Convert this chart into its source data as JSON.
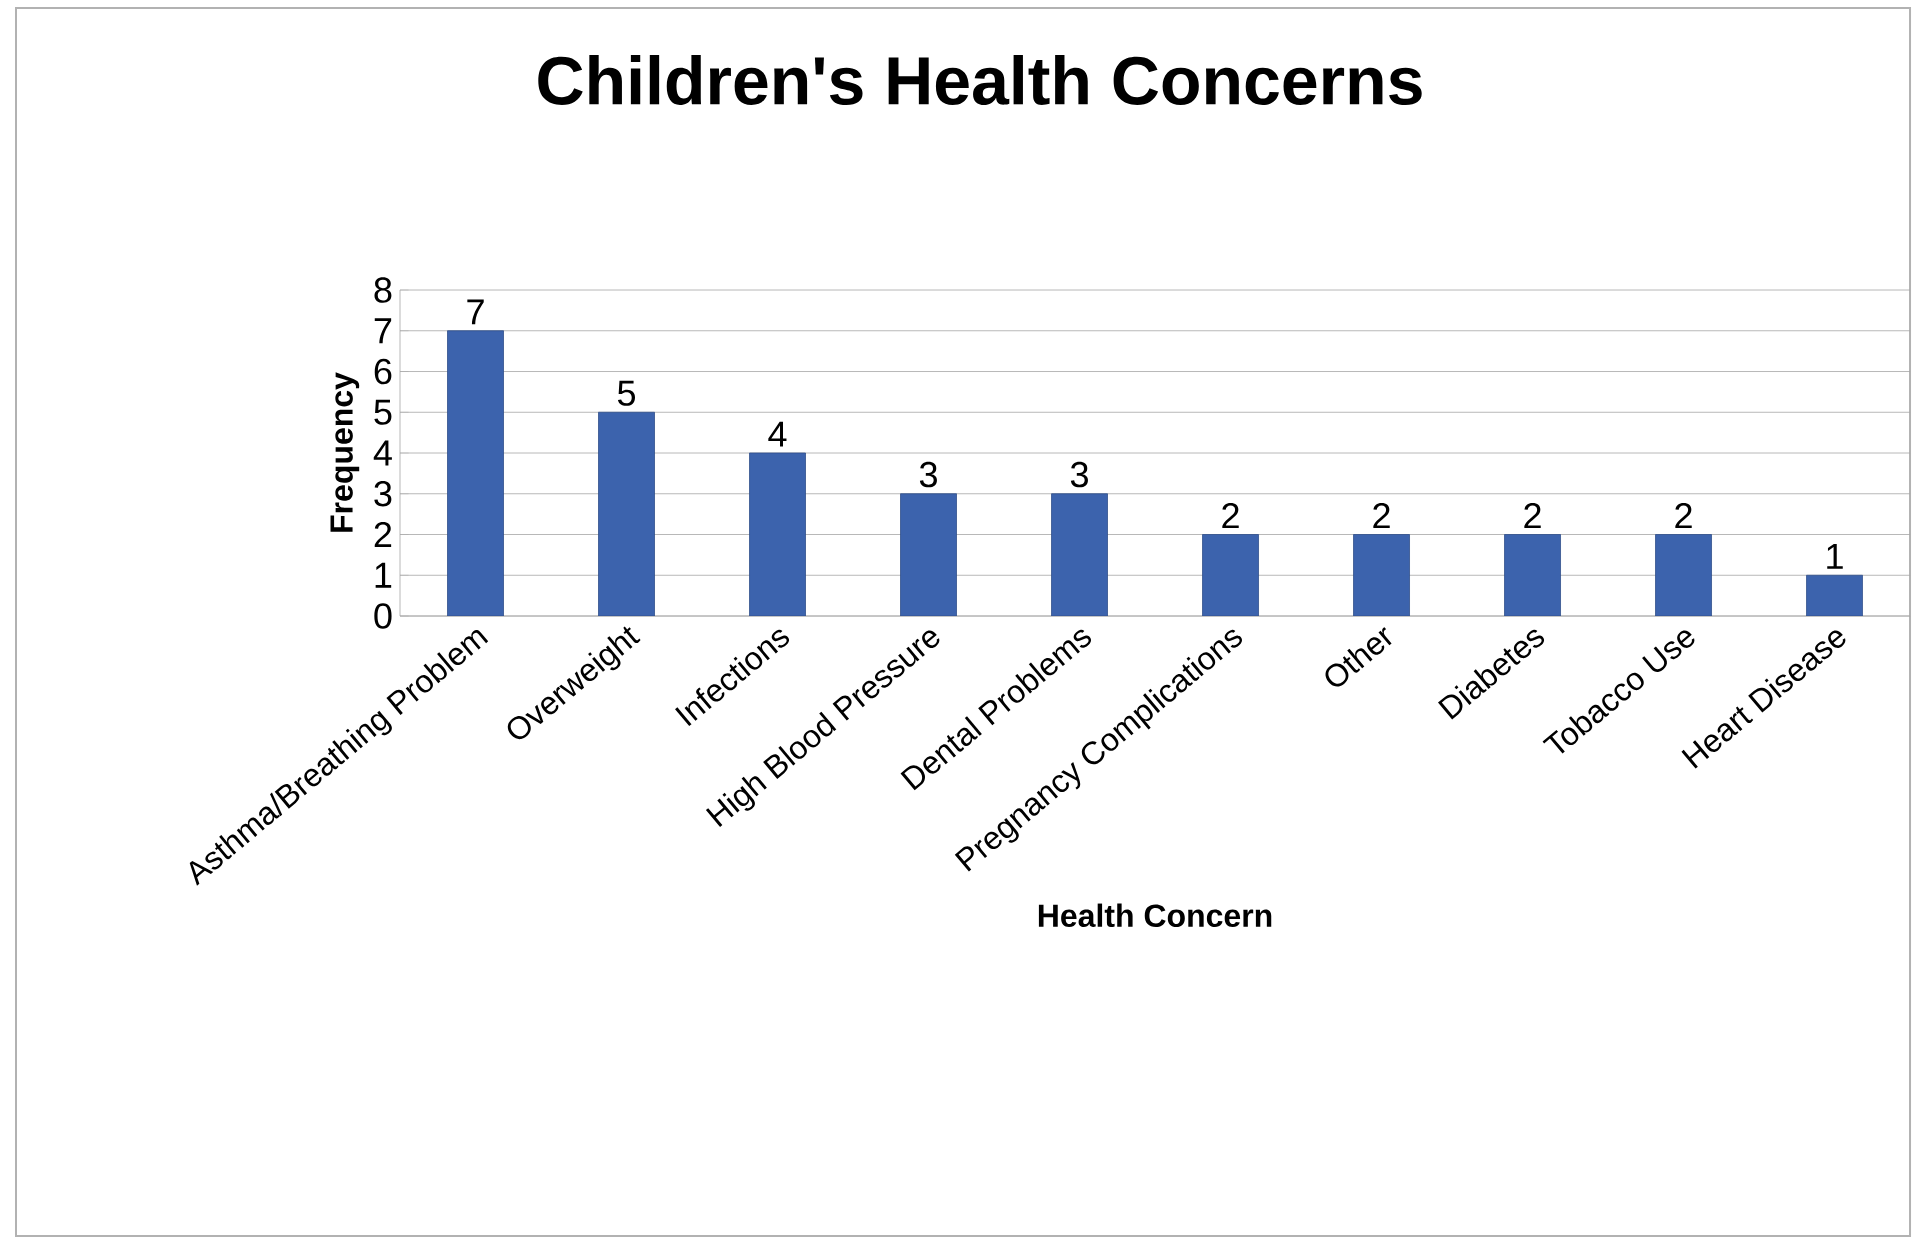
{
  "chart_data": {
    "type": "bar",
    "title": "Children's Health Concerns",
    "xlabel": "Health Concern",
    "ylabel": "Frequency",
    "categories": [
      "Asthma/Breathing Problem",
      "Overweight",
      "Infections",
      "High Blood Pressure",
      "Dental Problems",
      "Pregnancy Complications",
      "Other",
      "Diabetes",
      "Tobacco Use",
      "Heart Disease"
    ],
    "values": [
      7,
      5,
      4,
      3,
      3,
      2,
      2,
      2,
      2,
      1
    ],
    "color": "#3c63ad",
    "ylim": [
      0,
      8
    ],
    "yticks": [
      0,
      1,
      2,
      3,
      4,
      5,
      6,
      7,
      8
    ],
    "grid": "y",
    "data_labels": true
  }
}
